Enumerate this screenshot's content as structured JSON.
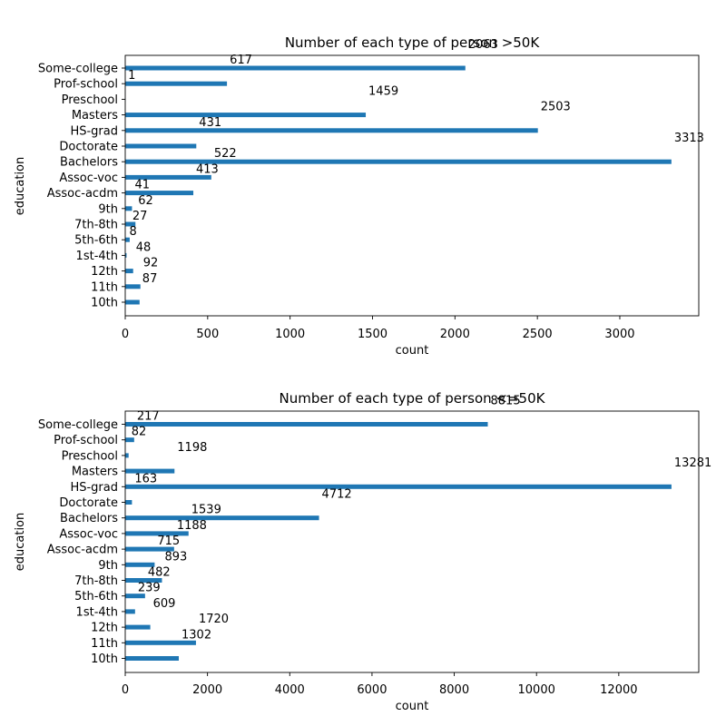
{
  "colors": {
    "bar": "#1f77b4"
  },
  "chart_data": [
    {
      "type": "bar",
      "orientation": "horizontal",
      "title": "Number of each type of person >50K",
      "xlabel": "count",
      "ylabel": "education",
      "xlim": [
        0,
        3479
      ],
      "xticks": [
        0,
        500,
        1000,
        1500,
        2000,
        2500,
        3000
      ],
      "grid": false,
      "categories": [
        "Some-college",
        "Prof-school",
        "Preschool",
        "Masters",
        "HS-grad",
        "Doctorate",
        "Bachelors",
        "Assoc-voc",
        "Assoc-acdm",
        "9th",
        "7th-8th",
        "5th-6th",
        "1st-4th",
        "12th",
        "11th",
        "10th"
      ],
      "values": [
        2063,
        617,
        1,
        1459,
        2503,
        431,
        3313,
        522,
        413,
        41,
        62,
        27,
        8,
        48,
        92,
        87
      ],
      "data_labels": [
        "2063",
        "617",
        "1",
        "1459",
        "2503",
        "431",
        "3313",
        "522",
        "413",
        "41",
        "62",
        "27",
        "8",
        "48",
        "92",
        "87"
      ]
    },
    {
      "type": "bar",
      "orientation": "horizontal",
      "title": "Number of each type of person <=50K",
      "xlabel": "count",
      "ylabel": "education",
      "xlim": [
        0,
        13945
      ],
      "xticks": [
        0,
        2000,
        4000,
        6000,
        8000,
        10000,
        12000
      ],
      "grid": false,
      "categories": [
        "Some-college",
        "Prof-school",
        "Preschool",
        "Masters",
        "HS-grad",
        "Doctorate",
        "Bachelors",
        "Assoc-voc",
        "Assoc-acdm",
        "9th",
        "7th-8th",
        "5th-6th",
        "1st-4th",
        "12th",
        "11th",
        "10th"
      ],
      "values": [
        8815,
        217,
        82,
        1198,
        13281,
        163,
        4712,
        1539,
        1188,
        715,
        893,
        482,
        239,
        609,
        1720,
        1302
      ],
      "data_labels": [
        "8815",
        "217",
        "82",
        "1198",
        "13281",
        "163",
        "4712",
        "1539",
        "1188",
        "715",
        "893",
        "482",
        "239",
        "609",
        "1720",
        "1302"
      ]
    }
  ]
}
